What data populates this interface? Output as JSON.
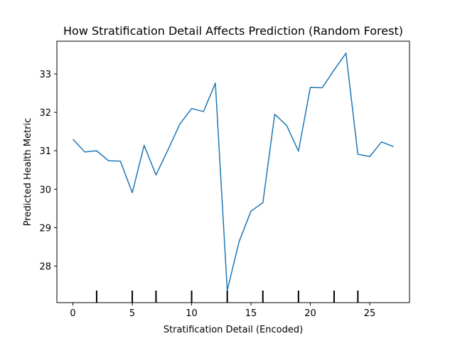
{
  "chart_data": {
    "type": "line",
    "title": "How Stratification Detail Affects Prediction (Random Forest)",
    "xlabel": "Stratification Detail (Encoded)",
    "ylabel": "Predicted Health Metric",
    "xlim": [
      -1.35,
      28.35
    ],
    "ylim": [
      27.05,
      33.85
    ],
    "xticks": [
      0,
      5,
      10,
      15,
      20,
      25
    ],
    "yticks": [
      28,
      29,
      30,
      31,
      32,
      33
    ],
    "grid": false,
    "series": [
      {
        "color": "#1f77b4",
        "x": [
          0,
          1,
          2,
          3,
          4,
          5,
          6,
          7,
          8,
          9,
          10,
          11,
          12,
          13,
          14,
          15,
          16,
          17,
          18,
          19,
          20,
          21,
          22,
          23,
          24,
          25,
          26,
          27
        ],
        "y": [
          31.3,
          30.97,
          31.0,
          30.74,
          30.73,
          29.91,
          31.14,
          30.37,
          31.02,
          31.69,
          32.1,
          32.02,
          32.76,
          27.37,
          28.64,
          29.43,
          29.65,
          31.95,
          31.66,
          30.99,
          32.65,
          32.64,
          33.1,
          33.54,
          30.91,
          30.85,
          31.23,
          31.11
        ]
      }
    ],
    "rug_x": [
      2,
      5,
      7,
      10,
      13,
      16,
      19,
      22,
      24
    ]
  }
}
